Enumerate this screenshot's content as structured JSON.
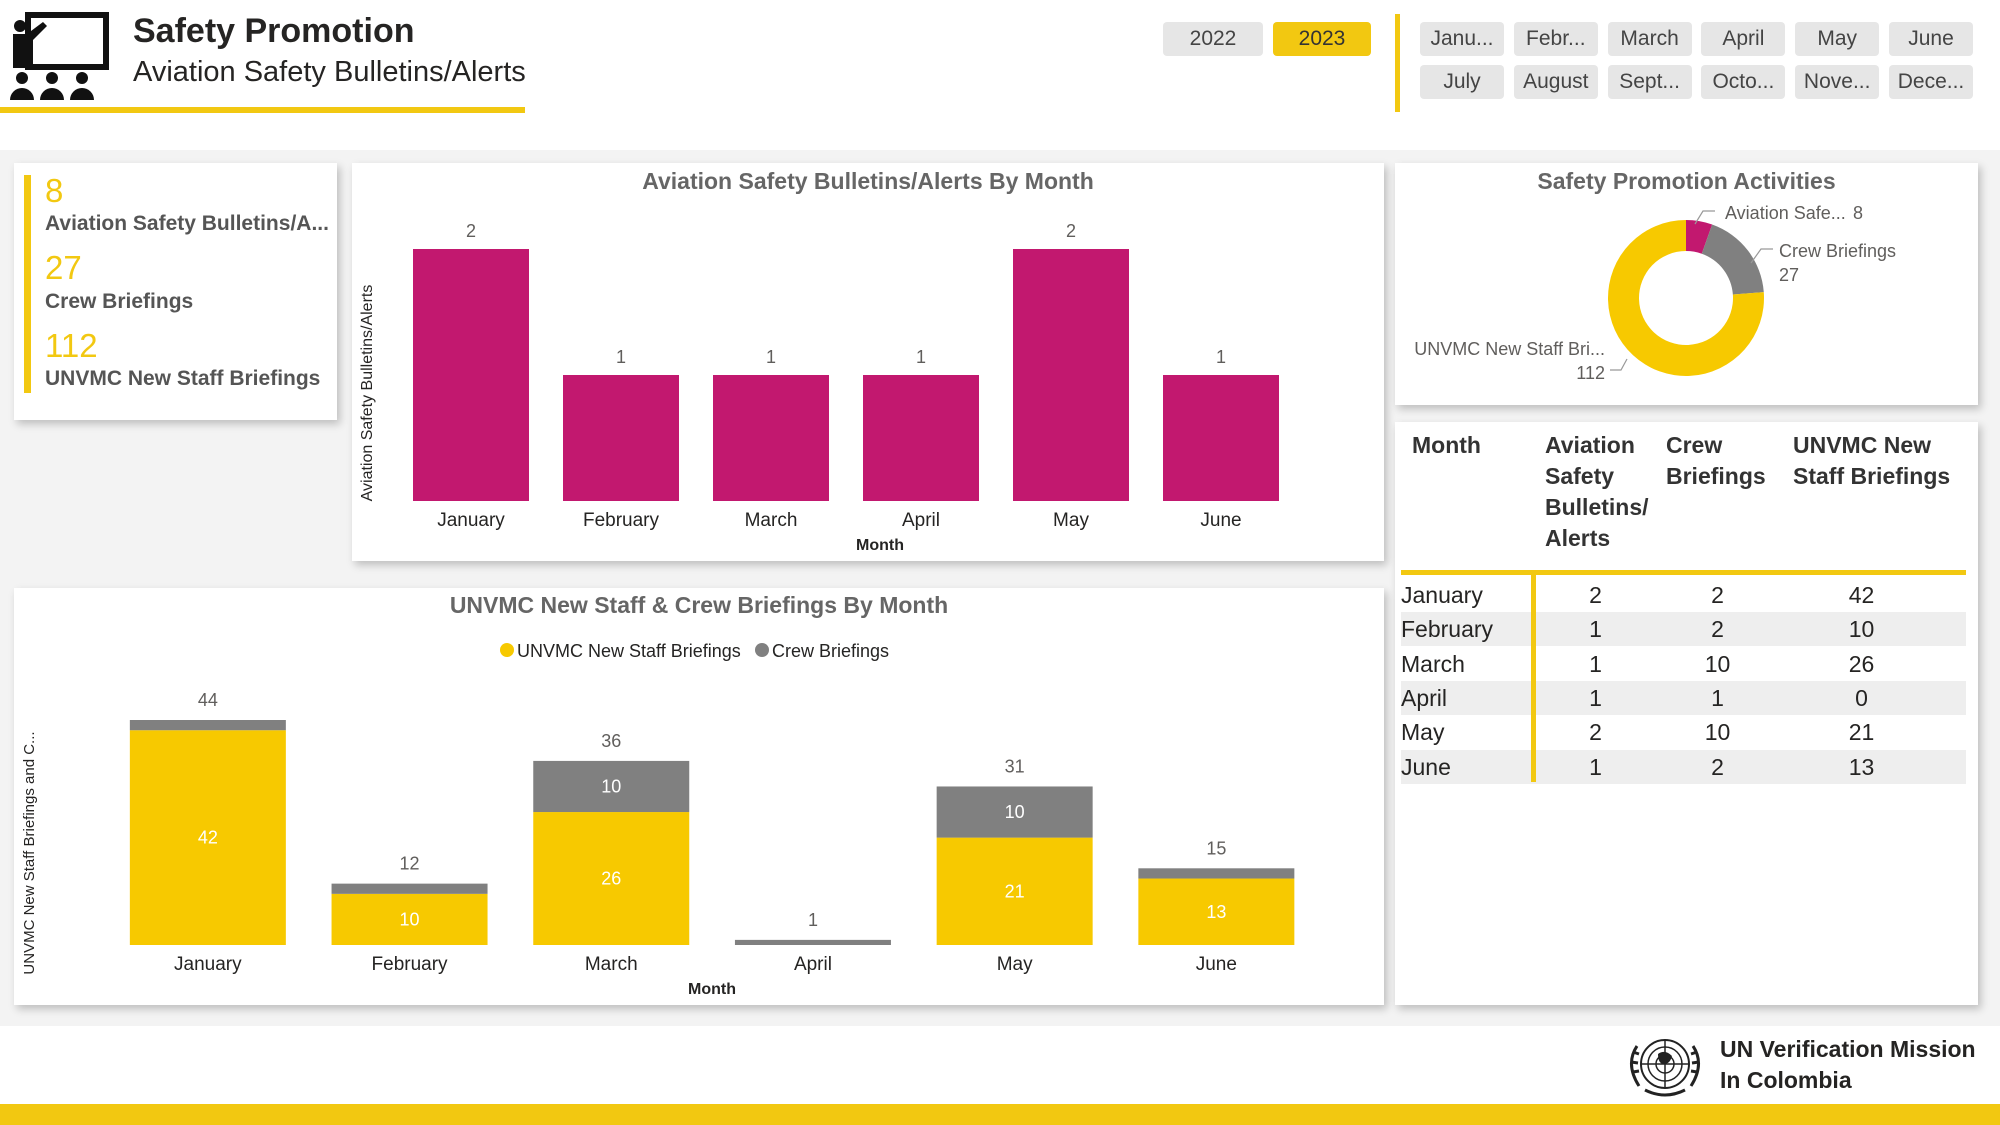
{
  "header": {
    "title": "Safety Promotion",
    "subtitle": "Aviation Safety Bulletins/Alerts"
  },
  "year_slicer": [
    {
      "label": "2022",
      "selected": false
    },
    {
      "label": "2023",
      "selected": true
    }
  ],
  "month_slicer": [
    "Janu...",
    "Febr...",
    "March",
    "April",
    "May",
    "June",
    "July",
    "August",
    "Sept...",
    "Octo...",
    "Nove...",
    "Dece..."
  ],
  "kpis": [
    {
      "value": "8",
      "label": "Aviation Safety Bulletins/A..."
    },
    {
      "value": "27",
      "label": "Crew Briefings"
    },
    {
      "value": "112",
      "label": "UNVMC New Staff Briefings"
    }
  ],
  "chart_data": [
    {
      "type": "bar",
      "title": "Aviation Safety Bulletins/Alerts By Month",
      "xlabel": "Month",
      "ylabel": "Aviation Safety Bulletins/Alerts",
      "categories": [
        "January",
        "February",
        "March",
        "April",
        "May",
        "June"
      ],
      "values": [
        2,
        1,
        1,
        1,
        2,
        1
      ],
      "ylim": [
        0,
        2
      ],
      "color": "#c2186f",
      "grid": false
    },
    {
      "type": "bar",
      "stacked": true,
      "title": "UNVMC New Staff & Crew Briefings By Month",
      "xlabel": "Month",
      "ylabel": "UNVMC New Staff Briefings and C...",
      "categories": [
        "January",
        "February",
        "March",
        "April",
        "May",
        "June"
      ],
      "series": [
        {
          "name": "UNVMC New Staff Briefings",
          "values": [
            42,
            10,
            26,
            0,
            21,
            13
          ],
          "color": "#f7c900"
        },
        {
          "name": "Crew Briefings",
          "values": [
            2,
            2,
            10,
            1,
            10,
            2
          ],
          "color": "#808080"
        }
      ],
      "totals": [
        44,
        12,
        36,
        1,
        31,
        15
      ],
      "ylim": [
        0,
        44
      ],
      "legend": "top-center",
      "grid": false
    },
    {
      "type": "pie",
      "donut": true,
      "title": "Safety Promotion Activities",
      "slices": [
        {
          "label": "Aviation Safe...",
          "value": 8,
          "color": "#c2186f"
        },
        {
          "label": "Crew Briefings",
          "value": 27,
          "color": "#808080"
        },
        {
          "label": "UNVMC New Staff Bri...",
          "value": 112,
          "color": "#f7c900"
        }
      ]
    },
    {
      "type": "table",
      "columns": [
        "Month",
        "Aviation Safety Bulletins/ Alerts",
        "Crew Briefings",
        "UNVMC New Staff Briefings"
      ],
      "rows": [
        [
          "January",
          "2",
          "2",
          "42"
        ],
        [
          "February",
          "1",
          "2",
          "10"
        ],
        [
          "March",
          "1",
          "10",
          "26"
        ],
        [
          "April",
          "1",
          "1",
          "0"
        ],
        [
          "May",
          "2",
          "10",
          "21"
        ],
        [
          "June",
          "1",
          "2",
          "13"
        ]
      ]
    }
  ],
  "footer": {
    "org_line1": "UN Verification Mission",
    "org_line2": "In Colombia"
  },
  "colors": {
    "accent": "#f2c811",
    "magenta": "#c2186f",
    "yellow": "#f7c900",
    "gray": "#808080"
  },
  "icons": {
    "header_icon": "presentation-audience-icon",
    "footer_logo": "un-emblem-logo"
  }
}
